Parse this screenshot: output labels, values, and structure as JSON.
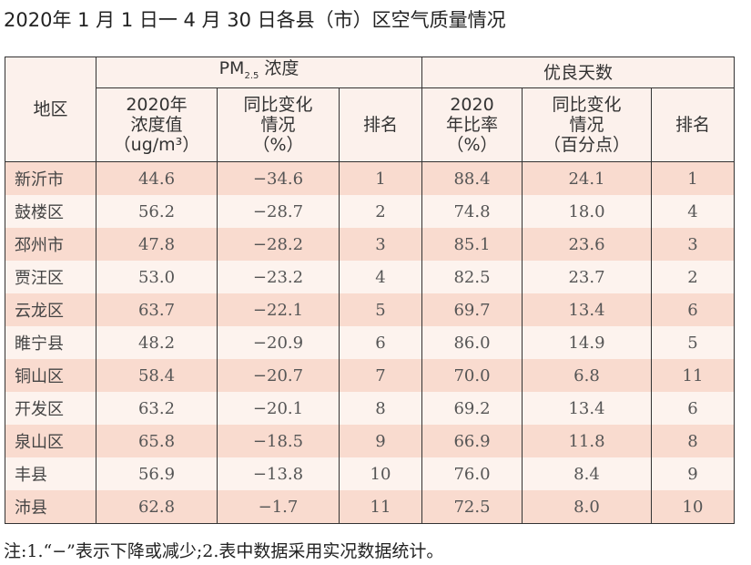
{
  "title": "2020年 1 月 1 日一 4 月 30 日各县（市）区空气质量情况",
  "header": {
    "region": "地区",
    "pm_group": "PM",
    "pm_sub": "2.5",
    "pm_group_suffix": " 浓度",
    "good_group": "优良天数",
    "pm_value": [
      "2020年",
      "浓度值",
      "（ug/m³）"
    ],
    "pm_change": [
      "同比变化",
      "情况",
      "（%）"
    ],
    "pm_rank": "排名",
    "good_rate": [
      "2020",
      "年比率",
      "（%）"
    ],
    "good_change": [
      "同比变化",
      "情况",
      "（百分点）"
    ],
    "good_rank": "排名"
  },
  "rows": [
    [
      "新沂市",
      "44.6",
      "−34.6",
      "1",
      "88.4",
      "24.1",
      "1"
    ],
    [
      "鼓楼区",
      "56.2",
      "−28.7",
      "2",
      "74.8",
      "18.0",
      "4"
    ],
    [
      "邳州市",
      "47.8",
      "−28.2",
      "3",
      "85.1",
      "23.6",
      "3"
    ],
    [
      "贾汪区",
      "53.0",
      "−23.2",
      "4",
      "82.5",
      "23.7",
      "2"
    ],
    [
      "云龙区",
      "63.7",
      "−22.1",
      "5",
      "69.7",
      "13.4",
      "6"
    ],
    [
      "睢宁县",
      "48.2",
      "−20.9",
      "6",
      "86.0",
      "14.9",
      "5"
    ],
    [
      "铜山区",
      "58.4",
      "−20.7",
      "7",
      "70.0",
      "6.8",
      "11"
    ],
    [
      "开发区",
      "63.2",
      "−20.1",
      "8",
      "69.2",
      "13.4",
      "6"
    ],
    [
      "泉山区",
      "65.8",
      "−18.5",
      "9",
      "66.9",
      "11.8",
      "8"
    ],
    [
      "丰县",
      "56.9",
      "−13.8",
      "10",
      "76.0",
      "8.4",
      "9"
    ],
    [
      "沛县",
      "62.8",
      "−1.7",
      "11",
      "72.5",
      "8.0",
      "10"
    ]
  ],
  "note": "注:1.“−”表示下降或减少;2.表中数据采用实况数据统计。",
  "colors": {
    "stripe_dark": "#f9dbcf",
    "stripe_light": "#fdf3ee",
    "header_bg": "#fcf1ec"
  }
}
